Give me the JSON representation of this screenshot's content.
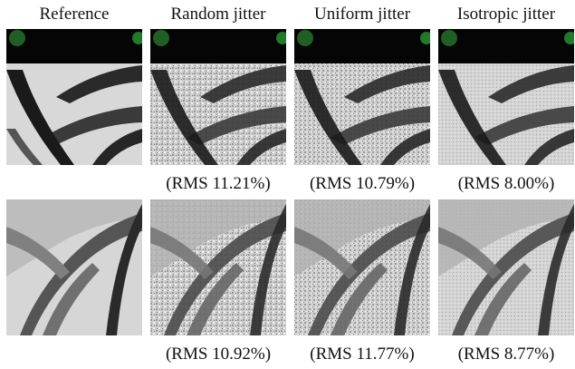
{
  "figure": {
    "columns": [
      {
        "label": "Reference"
      },
      {
        "label": "Random jitter"
      },
      {
        "label": "Uniform jitter"
      },
      {
        "label": "Isotropic jitter"
      }
    ],
    "rows": [
      {
        "content": "zebra-stripes-crop",
        "captions": [
          "(RMS 11.21%)",
          "(RMS 10.79%)",
          "(RMS 8.00%)"
        ]
      },
      {
        "content": "palm-fronds-crop",
        "captions": [
          "(RMS 10.92%)",
          "(RMS 11.77%)",
          "(RMS 8.77%)"
        ]
      }
    ]
  }
}
